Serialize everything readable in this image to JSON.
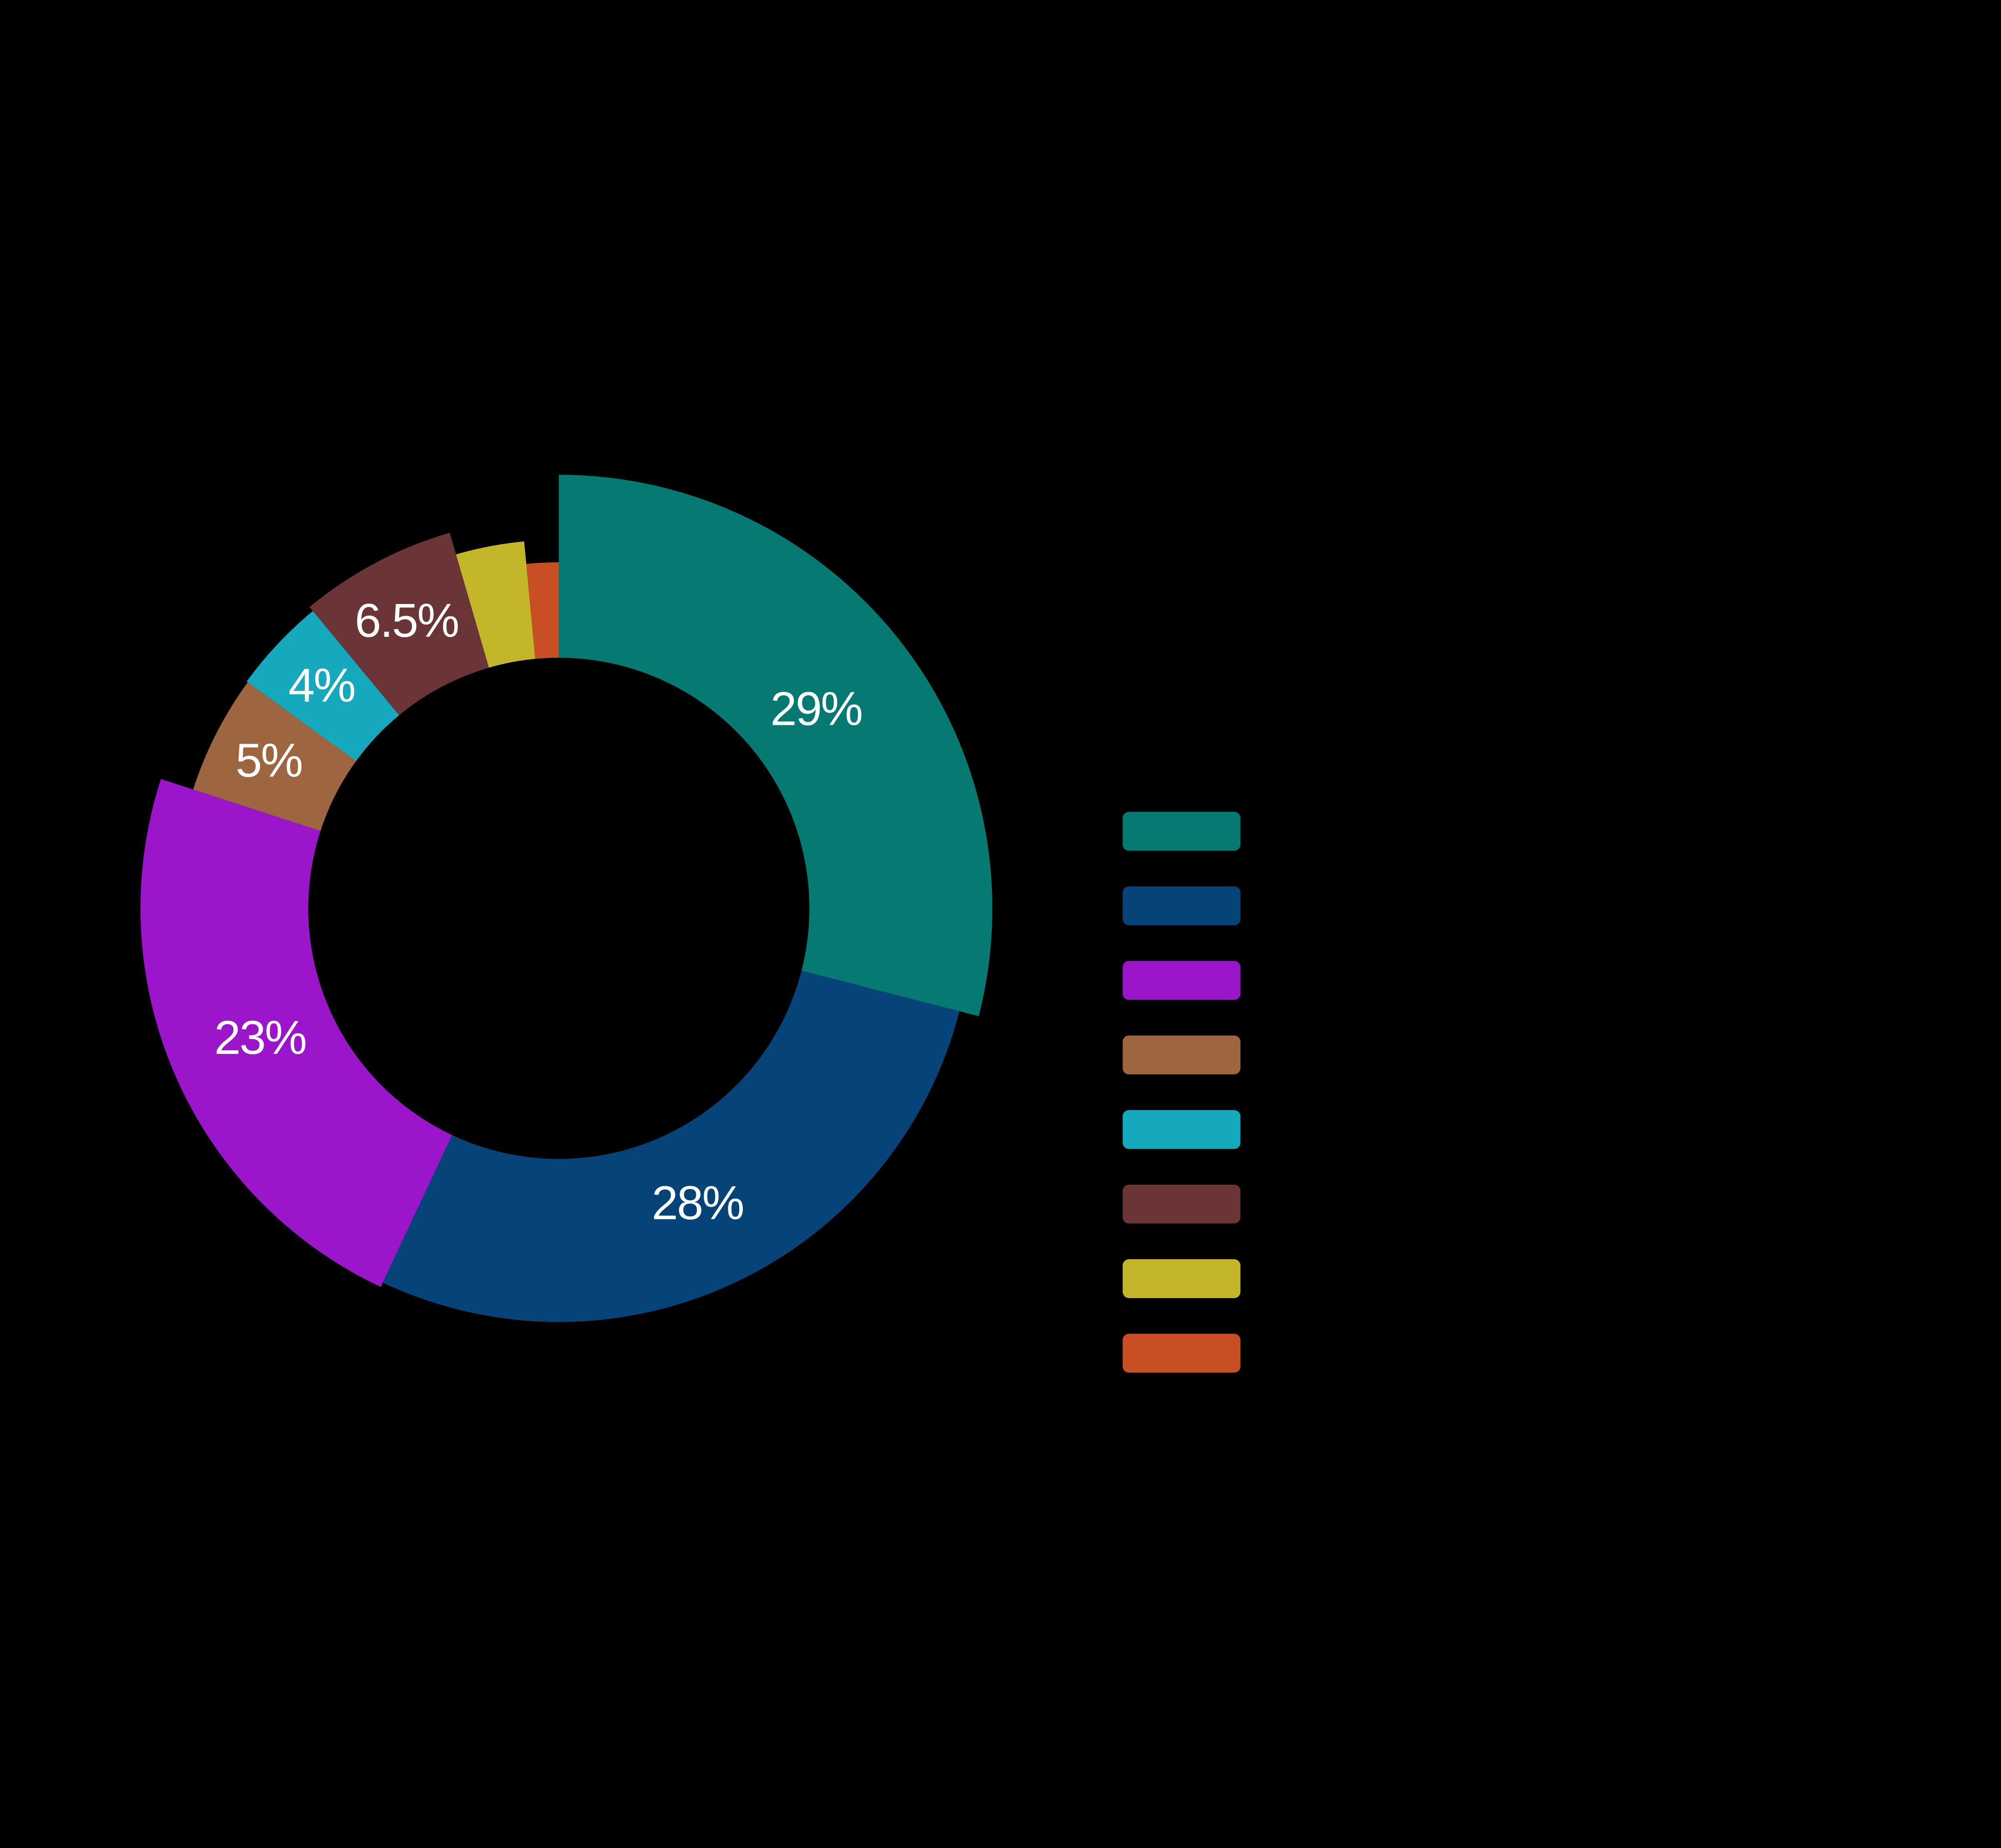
{
  "background_color": "#000000",
  "chart_data": {
    "type": "pie",
    "subtype": "donut-variable-radius",
    "title": "",
    "start_angle_deg": 0,
    "direction": "clockwise",
    "hole_radius_frac": 0.578,
    "label_radius_frac": 0.751,
    "label_color": "#ffffff",
    "legend_position": "right",
    "slices": [
      {
        "id": "slice-1",
        "display_label": "29%",
        "value": 29,
        "color": "#067a72",
        "radius_frac": 1.0
      },
      {
        "id": "slice-2",
        "display_label": "28%",
        "value": 28,
        "color": "#064379",
        "radius_frac": 0.954
      },
      {
        "id": "slice-3",
        "display_label": "23%",
        "value": 23,
        "color": "#9b16cb",
        "radius_frac": 0.965
      },
      {
        "id": "slice-4",
        "display_label": "5%",
        "value": 5,
        "color": "#9d6640",
        "radius_frac": 0.887
      },
      {
        "id": "slice-5",
        "display_label": "4%",
        "value": 4,
        "color": "#16a9bd",
        "radius_frac": 0.89
      },
      {
        "id": "slice-6",
        "display_label": "6.5%",
        "value": 6.5,
        "color": "#6b3538",
        "radius_frac": 0.902
      },
      {
        "id": "slice-7",
        "display_label": "",
        "value": 3,
        "color": "#c4b62a",
        "radius_frac": 0.85
      },
      {
        "id": "slice-8",
        "display_label": "",
        "value": 1.5,
        "color": "#c84f24",
        "radius_frac": 0.798
      }
    ]
  },
  "legend": {
    "items": [
      {
        "swatch_color": "#067a72"
      },
      {
        "swatch_color": "#064379"
      },
      {
        "swatch_color": "#9b16cb"
      },
      {
        "swatch_color": "#9d6640"
      },
      {
        "swatch_color": "#16a9bd"
      },
      {
        "swatch_color": "#6b3538"
      },
      {
        "swatch_color": "#c4b62a"
      },
      {
        "swatch_color": "#c84f24"
      }
    ]
  }
}
